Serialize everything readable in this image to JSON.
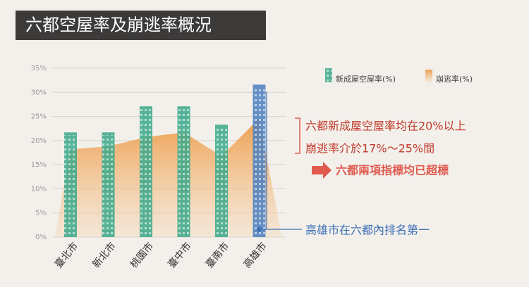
{
  "chart_data": {
    "type": "bar-area",
    "title": "六都空屋率及崩逃率概況",
    "categories": [
      "臺北市",
      "新北市",
      "桃園市",
      "臺中市",
      "臺南市",
      "高雄市"
    ],
    "series": [
      {
        "name": "新成屋空屋率(%)",
        "color": "#3aa88a",
        "colors": [
          "#3aa88a",
          "#3aa88a",
          "#3aa88a",
          "#3aa88a",
          "#3aa88a",
          "#4a7fc0"
        ],
        "values": [
          21.7,
          21.7,
          27.1,
          27.1,
          23.3,
          31.6
        ]
      },
      {
        "name": "崩逃率(%)",
        "color": "#f0a04b",
        "values": [
          18.2,
          18.8,
          20.7,
          21.7,
          16.8,
          24.6
        ]
      }
    ],
    "ylim": [
      0,
      35
    ],
    "yticks": [
      {
        "value": 0,
        "label": "0%"
      },
      {
        "value": 5,
        "label": "5%"
      },
      {
        "value": 10,
        "label": "10%"
      },
      {
        "value": 15,
        "label": "15%"
      },
      {
        "value": 20,
        "label": "20%"
      },
      {
        "value": 25,
        "label": "25%"
      },
      {
        "value": 30,
        "label": "30%"
      },
      {
        "value": 35,
        "label": "35%"
      }
    ],
    "grid": true,
    "annotations": [
      "六都新成屋空屋率均在20%以上",
      "崩逃率介於17%～25%間",
      "六都兩項指標均已超標",
      "高雄市在六都內排名第一"
    ]
  }
}
